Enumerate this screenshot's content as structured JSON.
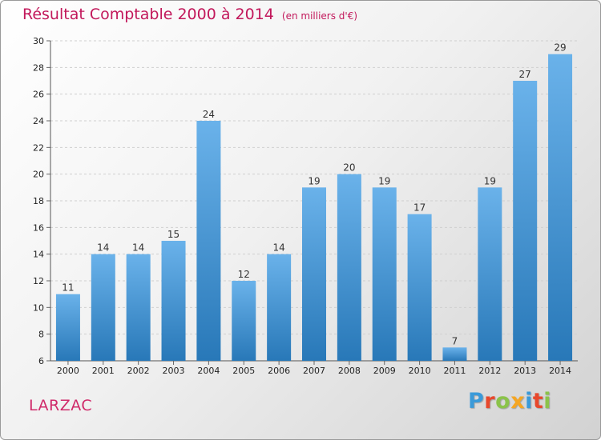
{
  "title": "Résultat Comptable 2000 à 2014",
  "subtitle": "(en milliers d'€)",
  "place": "LARZAC",
  "logo": {
    "letters": [
      "P",
      "r",
      "o",
      "x",
      "i",
      "t",
      "i"
    ],
    "colors": [
      "#3a9ad9",
      "#e8482c",
      "#8bc34a",
      "#f5a623",
      "#3a9ad9",
      "#e8482c",
      "#8bc34a"
    ]
  },
  "colors": {
    "bar_top": "#6ab2ea",
    "bar_bottom": "#2878b8",
    "title": "#c2185b"
  },
  "chart_data": {
    "type": "bar",
    "categories": [
      "2000",
      "2001",
      "2002",
      "2003",
      "2004",
      "2005",
      "2006",
      "2007",
      "2008",
      "2009",
      "2010",
      "2011",
      "2012",
      "2013",
      "2014"
    ],
    "values": [
      11,
      14,
      14,
      15,
      24,
      12,
      14,
      19,
      20,
      19,
      17,
      7,
      19,
      27,
      29
    ],
    "ylim": [
      6,
      30
    ],
    "yticks": [
      6,
      8,
      10,
      12,
      14,
      16,
      18,
      20,
      22,
      24,
      26,
      28,
      30
    ],
    "grid": true,
    "xlabel": "",
    "ylabel": ""
  }
}
